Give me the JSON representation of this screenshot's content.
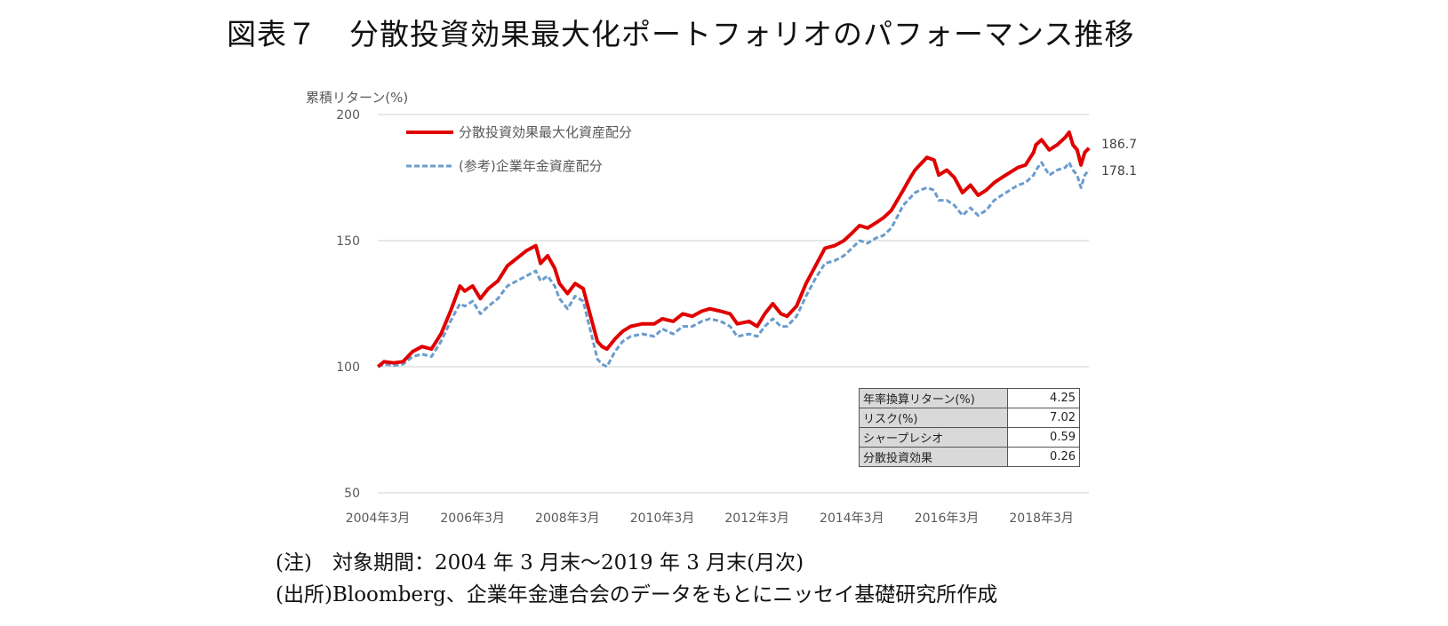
{
  "title": {
    "prefix": "図表７",
    "text": "分散投資効果最大化ポートフォリオのパフォーマンス推移"
  },
  "chart_data": {
    "type": "line",
    "ylabel": "累積リターン(%)",
    "ylim": [
      50,
      200
    ],
    "yticks": [
      50,
      100,
      150,
      200
    ],
    "xlim": [
      2004.167,
      2019.167
    ],
    "xticks": [
      {
        "x": 2004.167,
        "label": "2004年3月"
      },
      {
        "x": 2006.167,
        "label": "2006年3月"
      },
      {
        "x": 2008.167,
        "label": "2008年3月"
      },
      {
        "x": 2010.167,
        "label": "2010年3月"
      },
      {
        "x": 2012.167,
        "label": "2012年3月"
      },
      {
        "x": 2014.167,
        "label": "2014年3月"
      },
      {
        "x": 2016.167,
        "label": "2016年3月"
      },
      {
        "x": 2018.167,
        "label": "2018年3月"
      }
    ],
    "grid": true,
    "legend_position": "top-left",
    "series": [
      {
        "name": "分散投資効果最大化資産配分",
        "color": "#e00000",
        "style": "solid",
        "end_label": "186.7",
        "x": [
          2004.17,
          2004.3,
          2004.5,
          2004.7,
          2004.9,
          2005.1,
          2005.3,
          2005.5,
          2005.7,
          2005.9,
          2006.0,
          2006.17,
          2006.33,
          2006.5,
          2006.7,
          2006.9,
          2007.1,
          2007.3,
          2007.5,
          2007.6,
          2007.75,
          2007.9,
          2008.0,
          2008.17,
          2008.33,
          2008.5,
          2008.67,
          2008.8,
          2008.9,
          2009.0,
          2009.17,
          2009.33,
          2009.5,
          2009.75,
          2010.0,
          2010.17,
          2010.4,
          2010.6,
          2010.8,
          2011.0,
          2011.17,
          2011.4,
          2011.6,
          2011.75,
          2012.0,
          2012.17,
          2012.33,
          2012.5,
          2012.67,
          2012.8,
          2013.0,
          2013.2,
          2013.4,
          2013.6,
          2013.8,
          2014.0,
          2014.17,
          2014.33,
          2014.5,
          2014.67,
          2014.83,
          2015.0,
          2015.25,
          2015.4,
          2015.5,
          2015.6,
          2015.75,
          2015.9,
          2016.0,
          2016.17,
          2016.33,
          2016.5,
          2016.67,
          2016.83,
          2017.0,
          2017.17,
          2017.33,
          2017.5,
          2017.67,
          2017.83,
          2018.0,
          2018.05,
          2018.17,
          2018.33,
          2018.5,
          2018.67,
          2018.75,
          2018.83,
          2018.92,
          2019.0,
          2019.08,
          2019.17
        ],
        "y": [
          100,
          102,
          101.5,
          102,
          106,
          108,
          107,
          113,
          122,
          132,
          130,
          132,
          127,
          131,
          134,
          140,
          143,
          146,
          148,
          141,
          144,
          139,
          133,
          129,
          133,
          131,
          119,
          110,
          108,
          107,
          111,
          114,
          116,
          117,
          117,
          119,
          118,
          121,
          120,
          122,
          123,
          122,
          121,
          117,
          118,
          116,
          121,
          125,
          121,
          120,
          124,
          133,
          140,
          147,
          148,
          150,
          153,
          156,
          155,
          157,
          159,
          162,
          170,
          175,
          178,
          180,
          183,
          182,
          176,
          178,
          175,
          169,
          172,
          168,
          170,
          173,
          175,
          177,
          179,
          180,
          185,
          188,
          190,
          186,
          188,
          191,
          193,
          188,
          186,
          180,
          185,
          186.7
        ]
      },
      {
        "name": "(参考)企業年金資産配分",
        "color": "#6a9ccd",
        "style": "dashed",
        "end_label": "178.1",
        "x": [
          2004.17,
          2004.3,
          2004.5,
          2004.7,
          2004.9,
          2005.1,
          2005.3,
          2005.5,
          2005.7,
          2005.9,
          2006.0,
          2006.17,
          2006.33,
          2006.5,
          2006.7,
          2006.9,
          2007.1,
          2007.3,
          2007.5,
          2007.6,
          2007.75,
          2007.9,
          2008.0,
          2008.17,
          2008.33,
          2008.5,
          2008.67,
          2008.8,
          2008.9,
          2009.0,
          2009.17,
          2009.33,
          2009.5,
          2009.75,
          2010.0,
          2010.17,
          2010.4,
          2010.6,
          2010.8,
          2011.0,
          2011.17,
          2011.4,
          2011.6,
          2011.75,
          2012.0,
          2012.17,
          2012.33,
          2012.5,
          2012.67,
          2012.8,
          2013.0,
          2013.2,
          2013.4,
          2013.6,
          2013.8,
          2014.0,
          2014.17,
          2014.33,
          2014.5,
          2014.67,
          2014.83,
          2015.0,
          2015.25,
          2015.4,
          2015.5,
          2015.6,
          2015.75,
          2015.9,
          2016.0,
          2016.17,
          2016.33,
          2016.5,
          2016.67,
          2016.83,
          2017.0,
          2017.17,
          2017.33,
          2017.5,
          2017.67,
          2017.83,
          2018.0,
          2018.05,
          2018.17,
          2018.33,
          2018.5,
          2018.67,
          2018.75,
          2018.83,
          2018.92,
          2019.0,
          2019.08,
          2019.17
        ],
        "y": [
          100,
          101,
          100.5,
          101,
          104,
          105,
          104,
          110,
          118,
          125,
          124,
          126,
          121,
          124,
          127,
          132,
          134,
          136,
          138,
          134,
          136,
          132,
          127,
          123,
          128,
          126,
          113,
          103,
          101,
          100,
          106,
          110,
          112,
          113,
          112,
          115,
          113,
          116,
          116,
          118,
          119,
          118,
          116,
          112,
          113,
          112,
          116,
          119,
          116,
          116,
          120,
          128,
          135,
          141,
          142,
          144,
          147,
          150,
          149,
          151,
          152,
          155,
          164,
          167,
          169,
          170,
          171,
          170,
          166,
          166,
          164,
          160,
          163,
          160,
          162,
          166,
          168,
          170,
          172,
          173,
          176,
          178,
          181,
          176,
          178,
          179,
          181,
          178,
          176,
          171,
          176,
          178.1
        ]
      }
    ]
  },
  "stats_table": [
    {
      "label": "年率換算リターン(%)",
      "value": "4.25"
    },
    {
      "label": "リスク(%)",
      "value": "7.02"
    },
    {
      "label": "シャープレシオ",
      "value": "0.59"
    },
    {
      "label": "分散投資効果",
      "value": "0.26"
    }
  ],
  "notes": {
    "line1": "(注)　対象期間：2004 年 3 月末～2019 年 3 月末(月次)",
    "line2": "(出所)Bloomberg、企業年金連合会のデータをもとにニッセイ基礎研究所作成"
  }
}
